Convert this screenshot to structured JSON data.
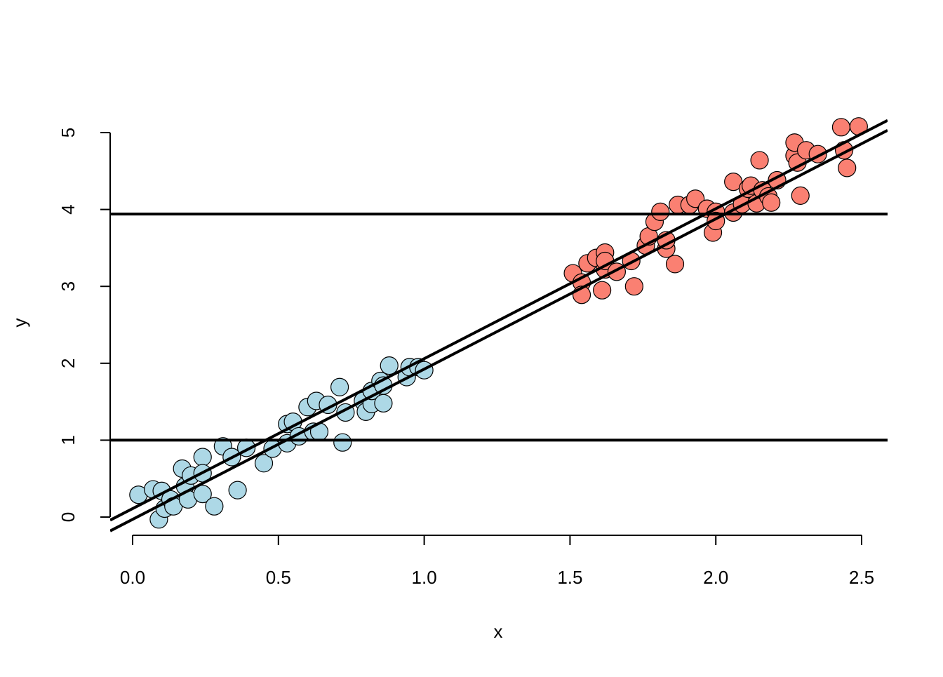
{
  "chart_data": {
    "type": "scatter",
    "x_label": "x",
    "y_label": "y",
    "xlim": [
      -0.077,
      2.589
    ],
    "ylim": [
      -0.237,
      5.237
    ],
    "xticks": [
      {
        "value": 0,
        "label": "0.0"
      },
      {
        "value": 0.5,
        "label": "0.5"
      },
      {
        "value": 1,
        "label": "1.0"
      },
      {
        "value": 1.5,
        "label": "1.5"
      },
      {
        "value": 2,
        "label": "2.0"
      },
      {
        "value": 2.5,
        "label": "2.5"
      }
    ],
    "yticks": [
      0,
      1,
      2,
      3,
      4,
      5
    ],
    "series": [
      {
        "color": "#add8e6",
        "x": [
          0.02,
          0.07,
          0.09,
          0.1,
          0.11,
          0.13,
          0.14,
          0.17,
          0.18,
          0.19,
          0.2,
          0.24,
          0.24,
          0.24,
          0.28,
          0.31,
          0.34,
          0.36,
          0.39,
          0.45,
          0.48,
          0.53,
          0.53,
          0.55,
          0.57,
          0.6,
          0.62,
          0.63,
          0.64,
          0.67,
          0.71,
          0.72,
          0.73,
          0.79,
          0.8,
          0.82,
          0.82,
          0.85,
          0.86,
          0.86,
          0.88,
          0.94,
          0.95,
          0.98,
          1.0
        ],
        "values": [
          0.29,
          0.36,
          -0.03,
          0.34,
          0.11,
          0.23,
          0.14,
          0.63,
          0.4,
          0.23,
          0.54,
          0.78,
          0.57,
          0.3,
          0.14,
          0.92,
          0.78,
          0.35,
          0.9,
          0.7,
          0.89,
          0.96,
          1.21,
          1.24,
          1.05,
          1.43,
          1.11,
          1.51,
          1.11,
          1.46,
          1.69,
          0.97,
          1.36,
          1.51,
          1.37,
          1.47,
          1.64,
          1.77,
          1.48,
          1.71,
          1.97,
          1.82,
          1.95,
          1.95,
          1.91
        ]
      },
      {
        "color": "#fa8072",
        "x": [
          1.51,
          1.54,
          1.54,
          1.56,
          1.59,
          1.61,
          1.62,
          1.62,
          1.62,
          1.66,
          1.71,
          1.72,
          1.76,
          1.77,
          1.79,
          1.81,
          1.83,
          1.83,
          1.86,
          1.87,
          1.91,
          1.93,
          1.97,
          1.99,
          2.0,
          2.0,
          2.06,
          2.06,
          2.09,
          2.11,
          2.12,
          2.14,
          2.15,
          2.16,
          2.18,
          2.19,
          2.21,
          2.27,
          2.27,
          2.28,
          2.29,
          2.31,
          2.35,
          2.43,
          2.44,
          2.45,
          2.49
        ],
        "values": [
          3.17,
          3.05,
          2.89,
          3.3,
          3.37,
          2.95,
          3.22,
          3.44,
          3.33,
          3.19,
          3.33,
          3.0,
          3.53,
          3.65,
          3.84,
          3.97,
          3.49,
          3.6,
          3.29,
          4.06,
          4.06,
          4.14,
          4.01,
          3.7,
          3.97,
          3.85,
          3.96,
          4.36,
          4.07,
          4.27,
          4.31,
          4.08,
          4.64,
          4.25,
          4.17,
          4.09,
          4.38,
          4.7,
          4.87,
          4.61,
          4.18,
          4.77,
          4.72,
          5.07,
          4.77,
          4.54,
          5.08
        ]
      }
    ],
    "hlines": [
      1.0,
      3.94
    ],
    "ablines": [
      {
        "intercept": 0.11,
        "slope": 1.95
      },
      {
        "intercept": -0.03,
        "slope": 1.954
      }
    ]
  }
}
